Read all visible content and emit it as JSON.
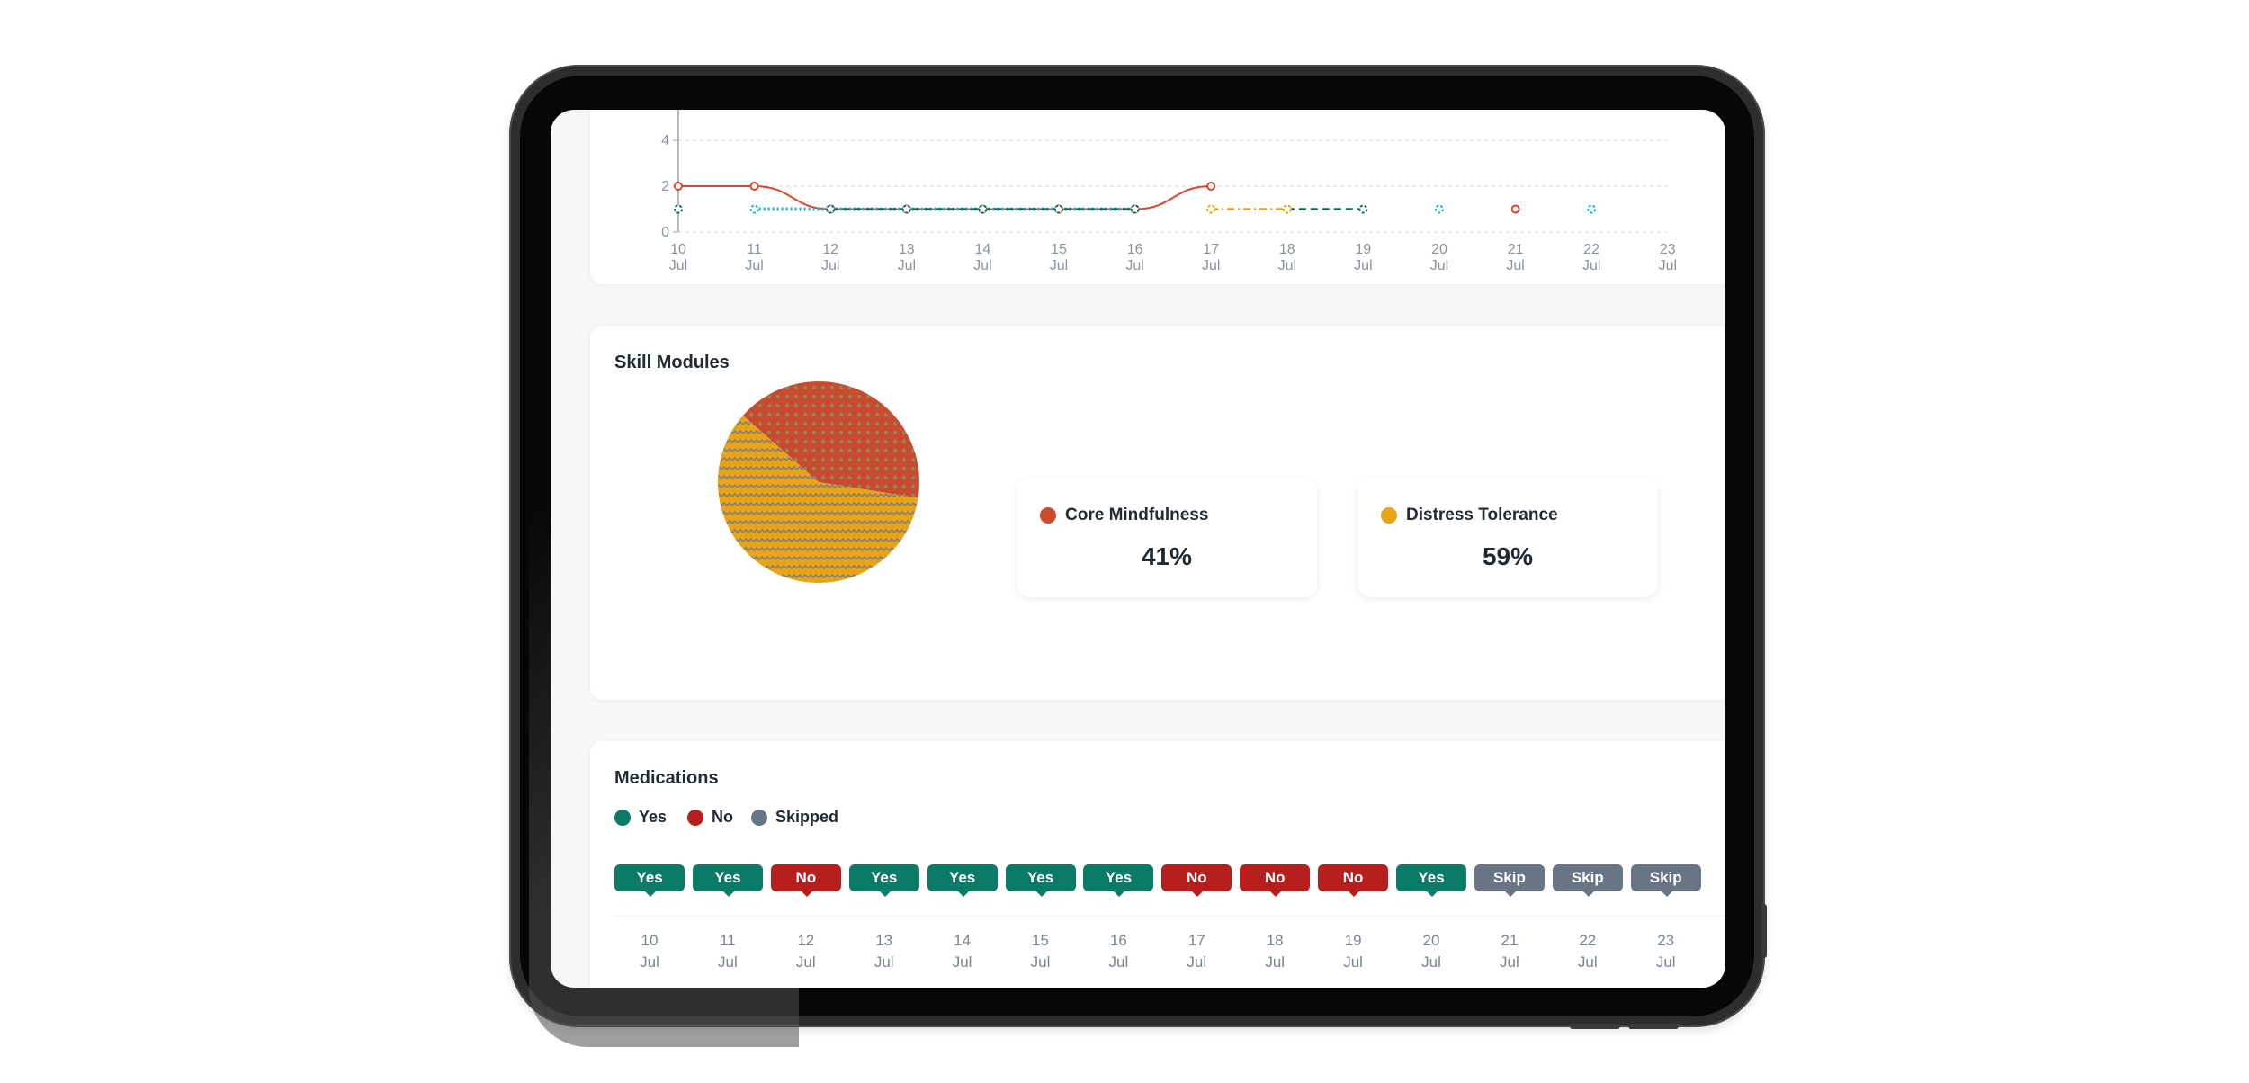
{
  "mood_chart": {
    "y_ticks": [
      "0",
      "2",
      "4"
    ],
    "dates": [
      {
        "day": "10",
        "month": "Jul"
      },
      {
        "day": "11",
        "month": "Jul"
      },
      {
        "day": "12",
        "month": "Jul"
      },
      {
        "day": "13",
        "month": "Jul"
      },
      {
        "day": "14",
        "month": "Jul"
      },
      {
        "day": "15",
        "month": "Jul"
      },
      {
        "day": "16",
        "month": "Jul"
      },
      {
        "day": "17",
        "month": "Jul"
      },
      {
        "day": "18",
        "month": "Jul"
      },
      {
        "day": "19",
        "month": "Jul"
      },
      {
        "day": "20",
        "month": "Jul"
      },
      {
        "day": "21",
        "month": "Jul"
      },
      {
        "day": "22",
        "month": "Jul"
      },
      {
        "day": "23",
        "month": "Jul"
      }
    ]
  },
  "chart_data": {
    "type": "line",
    "x": [
      "10 Jul",
      "11 Jul",
      "12 Jul",
      "13 Jul",
      "14 Jul",
      "15 Jul",
      "16 Jul",
      "17 Jul",
      "18 Jul",
      "19 Jul",
      "20 Jul",
      "21 Jul",
      "22 Jul",
      "23 Jul"
    ],
    "ylim": [
      0,
      5
    ],
    "yticks": [
      0,
      2,
      4
    ],
    "grid": true,
    "series": [
      {
        "color": "#e0452b",
        "style": "solid",
        "values": [
          2,
          2,
          1,
          1,
          1,
          1,
          1,
          2,
          null,
          null,
          null,
          1,
          null,
          null
        ]
      },
      {
        "color": "#19b5c8",
        "style": "dotted",
        "values": [
          null,
          1,
          1,
          1,
          1,
          1,
          1,
          null,
          null,
          null,
          1,
          null,
          1,
          null
        ]
      },
      {
        "color": "#0d6e5f",
        "style": "dashed",
        "values": [
          1,
          null,
          1,
          1,
          1,
          1,
          1,
          null,
          1,
          1,
          null,
          null,
          null,
          null
        ]
      },
      {
        "color": "#e8a317",
        "style": "dashdot",
        "values": [
          null,
          null,
          null,
          null,
          null,
          null,
          null,
          1,
          1,
          null,
          null,
          null,
          null,
          null
        ]
      }
    ]
  },
  "skill_modules": {
    "title": "Skill Modules",
    "items": [
      {
        "label": "Core Mindfulness",
        "value_text": "41%",
        "value": 41,
        "color": "#c94a2e"
      },
      {
        "label": "Distress Tolerance",
        "value_text": "59%",
        "value": 59,
        "color": "#e8a317"
      }
    ]
  },
  "medications": {
    "title": "Medications",
    "legend": [
      {
        "label": "Yes",
        "color": "#0b7a66"
      },
      {
        "label": "No",
        "color": "#b71f1f"
      },
      {
        "label": "Skipped",
        "color": "#687584"
      }
    ],
    "colors": {
      "Yes": "#0b7a66",
      "No": "#b71f1f",
      "Skip": "#687584"
    },
    "entries": [
      {
        "status": "Yes",
        "day": "10",
        "month": "Jul"
      },
      {
        "status": "Yes",
        "day": "11",
        "month": "Jul"
      },
      {
        "status": "No",
        "day": "12",
        "month": "Jul"
      },
      {
        "status": "Yes",
        "day": "13",
        "month": "Jul"
      },
      {
        "status": "Yes",
        "day": "14",
        "month": "Jul"
      },
      {
        "status": "Yes",
        "day": "15",
        "month": "Jul"
      },
      {
        "status": "Yes",
        "day": "16",
        "month": "Jul"
      },
      {
        "status": "No",
        "day": "17",
        "month": "Jul"
      },
      {
        "status": "No",
        "day": "18",
        "month": "Jul"
      },
      {
        "status": "No",
        "day": "19",
        "month": "Jul"
      },
      {
        "status": "Yes",
        "day": "20",
        "month": "Jul"
      },
      {
        "status": "Skip",
        "day": "21",
        "month": "Jul"
      },
      {
        "status": "Skip",
        "day": "22",
        "month": "Jul"
      },
      {
        "status": "Skip",
        "day": "23",
        "month": "Jul"
      }
    ]
  }
}
